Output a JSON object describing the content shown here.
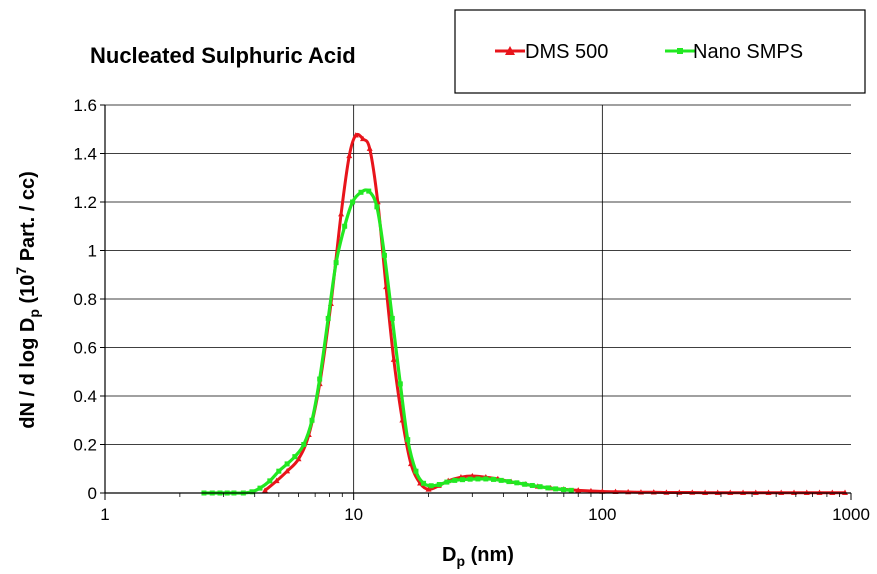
{
  "chart_data": {
    "type": "line",
    "title": "Nucleated Sulphuric Acid",
    "xlabel": {
      "main": "D",
      "sub": "p",
      "rest": " (nm)"
    },
    "ylabel": {
      "part1": "dN / d log D",
      "sub": "p",
      "part2": " (10",
      "sup": "7",
      "part3": " Part. / cc)"
    },
    "x_scale": "log",
    "xlim": [
      1,
      1000
    ],
    "ylim": [
      0,
      1.6
    ],
    "x_ticks": [
      1,
      10,
      100,
      1000
    ],
    "x_tick_labels": [
      "1",
      "10",
      "100",
      "1000"
    ],
    "y_ticks": [
      0,
      0.2,
      0.4,
      0.6,
      0.8,
      1,
      1.2,
      1.4,
      1.6
    ],
    "y_tick_labels": [
      "0",
      "0.2",
      "0.4",
      "0.6",
      "0.8",
      "1",
      "1.2",
      "1.4",
      "1.6"
    ],
    "grid": "major",
    "legend_position": "top-right",
    "series": [
      {
        "name": "DMS 500",
        "color": "#e8141b",
        "marker": "triangle",
        "x": [
          4.4,
          4.9,
          5.4,
          6.0,
          6.6,
          7.3,
          8.1,
          8.9,
          9.6,
          10.2,
          10.9,
          11.6,
          12.5,
          13.5,
          14.5,
          15.7,
          17.0,
          18.5,
          20.0,
          22.0,
          24.0,
          27.0,
          30.0,
          34.0,
          38.0,
          43.0,
          49.0,
          55.0,
          62.0,
          70.0,
          80.0,
          90.0,
          100.0,
          113.0,
          127.0,
          143.0,
          161.0,
          181.0,
          204.0,
          230.0,
          259.0,
          291.0,
          327.0,
          368.0,
          414.0,
          466.0,
          524.0,
          590.0,
          664.0,
          747.0,
          841.0,
          946.0
        ],
        "y": [
          0.01,
          0.05,
          0.09,
          0.14,
          0.24,
          0.45,
          0.78,
          1.15,
          1.39,
          1.475,
          1.46,
          1.42,
          1.2,
          0.85,
          0.55,
          0.3,
          0.12,
          0.04,
          0.015,
          0.03,
          0.05,
          0.065,
          0.07,
          0.065,
          0.058,
          0.046,
          0.036,
          0.027,
          0.02,
          0.015,
          0.011,
          0.008,
          0.006,
          0.005,
          0.004,
          0.003,
          0.003,
          0.002,
          0.002,
          0.002,
          0.001,
          0.001,
          0.001,
          0.001,
          0.001,
          0.001,
          0.001,
          0.001,
          0.001,
          0.001,
          0.001,
          0.001
        ]
      },
      {
        "name": "Nano SMPS",
        "color": "#22e822",
        "marker": "square",
        "x": [
          2.5,
          2.7,
          2.9,
          3.1,
          3.3,
          3.6,
          3.9,
          4.2,
          4.6,
          5.0,
          5.4,
          5.8,
          6.3,
          6.8,
          7.3,
          7.9,
          8.5,
          9.2,
          9.9,
          10.7,
          11.5,
          12.4,
          13.3,
          14.3,
          15.4,
          16.5,
          17.8,
          19.1,
          20.5,
          22.1,
          23.7,
          25.5,
          27.4,
          29.4,
          31.6,
          34.0,
          36.5,
          39.2,
          42.1,
          45.3,
          48.7,
          52.3,
          56.2,
          60.4,
          64.9,
          69.8,
          75.0
        ],
        "y": [
          0.0,
          0.0,
          0.0,
          0.0,
          0.0,
          0.0,
          0.005,
          0.02,
          0.05,
          0.09,
          0.12,
          0.15,
          0.2,
          0.3,
          0.47,
          0.72,
          0.95,
          1.1,
          1.2,
          1.24,
          1.245,
          1.18,
          0.98,
          0.72,
          0.45,
          0.22,
          0.09,
          0.04,
          0.03,
          0.035,
          0.045,
          0.052,
          0.055,
          0.057,
          0.058,
          0.058,
          0.056,
          0.052,
          0.047,
          0.042,
          0.036,
          0.031,
          0.026,
          0.021,
          0.017,
          0.014,
          0.011
        ]
      }
    ]
  }
}
